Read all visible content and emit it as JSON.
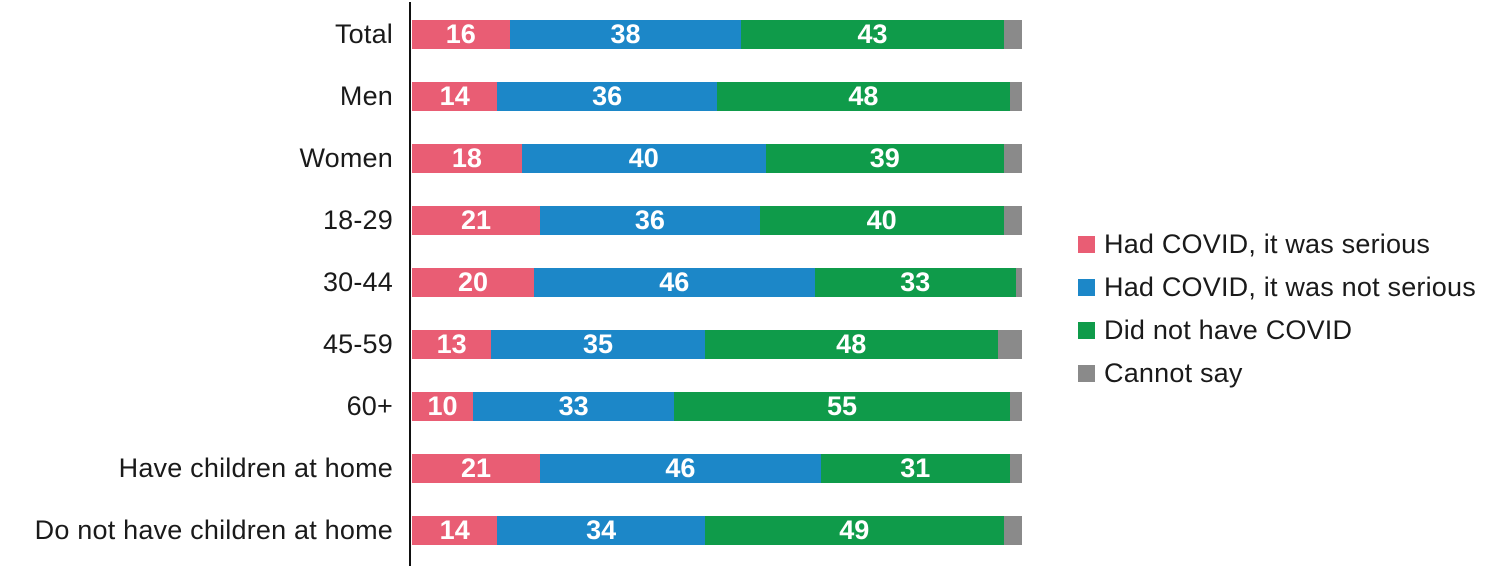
{
  "chart_data": {
    "type": "bar",
    "orientation": "horizontal",
    "stacked": true,
    "unit": "percent",
    "title": "",
    "xlabel": "",
    "ylabel": "",
    "xlim": [
      0,
      100
    ],
    "grid": false,
    "legend_position": "right",
    "value_labels": "inside-white",
    "categories": [
      "Total",
      "Men",
      "Women",
      "18-29",
      "30-44",
      "45-59",
      "60+",
      "Have children at home",
      "Do not have children at home"
    ],
    "series": [
      {
        "name": "Had COVID, it was serious",
        "color": "#e95d74",
        "show_labels": true,
        "values": [
          16,
          14,
          18,
          21,
          20,
          13,
          10,
          21,
          14
        ]
      },
      {
        "name": "Had COVID, it was not serious",
        "color": "#1c87c8",
        "show_labels": true,
        "values": [
          38,
          36,
          40,
          36,
          46,
          35,
          33,
          46,
          34
        ]
      },
      {
        "name": "Did not have COVID",
        "color": "#0f9b4a",
        "show_labels": true,
        "values": [
          43,
          48,
          39,
          40,
          33,
          48,
          55,
          31,
          49
        ]
      },
      {
        "name": "Cannot say",
        "color": "#8a8a8a",
        "show_labels": false,
        "values": [
          3,
          2,
          3,
          3,
          1,
          4,
          2,
          2,
          3
        ]
      }
    ]
  }
}
